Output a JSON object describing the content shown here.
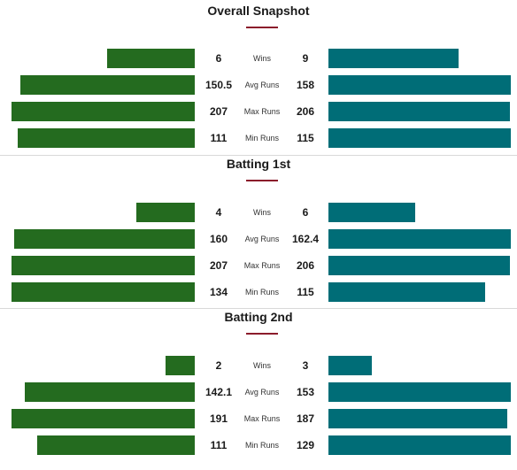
{
  "sections": [
    {
      "title": "Overall Snapshot",
      "rows": [
        {
          "label": "Wins",
          "left": "6",
          "right": "9",
          "left_num": 6,
          "right_num": 9
        },
        {
          "label": "Avg Runs",
          "left": "150.5",
          "right": "158",
          "left_num": 150.5,
          "right_num": 158
        },
        {
          "label": "Max Runs",
          "left": "207",
          "right": "206",
          "left_num": 207,
          "right_num": 206
        },
        {
          "label": "Min Runs",
          "left": "111",
          "right": "115",
          "left_num": 111,
          "right_num": 115
        }
      ]
    },
    {
      "title": "Batting 1st",
      "rows": [
        {
          "label": "Wins",
          "left": "4",
          "right": "6",
          "left_num": 4,
          "right_num": 6
        },
        {
          "label": "Avg Runs",
          "left": "160",
          "right": "162.4",
          "left_num": 160,
          "right_num": 162.4
        },
        {
          "label": "Max Runs",
          "left": "207",
          "right": "206",
          "left_num": 207,
          "right_num": 206
        },
        {
          "label": "Min Runs",
          "left": "134",
          "right": "115",
          "left_num": 134,
          "right_num": 115
        }
      ]
    },
    {
      "title": "Batting 2nd",
      "rows": [
        {
          "label": "Wins",
          "left": "2",
          "right": "3",
          "left_num": 2,
          "right_num": 3
        },
        {
          "label": "Avg Runs",
          "left": "142.1",
          "right": "153",
          "left_num": 142.1,
          "right_num": 153
        },
        {
          "label": "Max Runs",
          "left": "191",
          "right": "187",
          "left_num": 191,
          "right_num": 187
        },
        {
          "label": "Min Runs",
          "left": "111",
          "right": "129",
          "left_num": 111,
          "right_num": 129
        }
      ]
    }
  ],
  "colors": {
    "left_team": "#246b1f",
    "right_team": "#006d77",
    "accent": "#8b1b2b"
  }
}
